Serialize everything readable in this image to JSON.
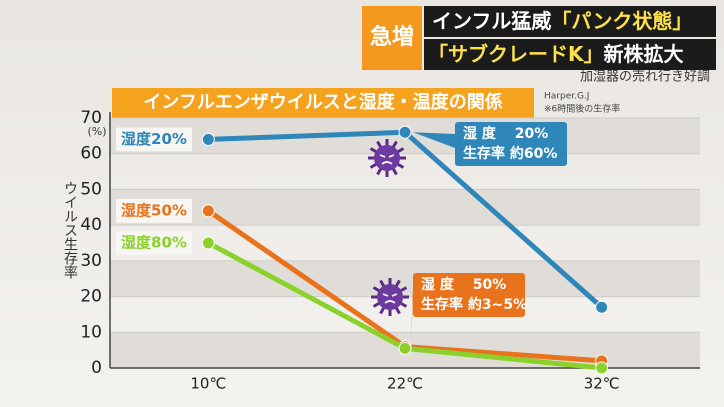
{
  "header": {
    "badge": "急増",
    "lines": [
      [
        {
          "text": "インフル猛威",
          "highlight": false
        },
        {
          "text": "「パンク状態」",
          "highlight": true
        }
      ],
      [
        {
          "text": "「サブクレードK」",
          "highlight": true
        },
        {
          "text": "新株拡大",
          "highlight": false
        }
      ]
    ],
    "subline": "加湿器の売れ行き好調"
  },
  "chart_data": {
    "type": "line",
    "title": "インフルエンザウイルスと湿度・温度の関係",
    "source": "Harper.G.J",
    "note": "※6時間後の生存率",
    "y_label": "ウイルス生存率",
    "y_unit": "(%)",
    "categories": [
      "10℃",
      "22℃",
      "32℃"
    ],
    "series": [
      {
        "name": "湿度20%",
        "color": "#2f86b9",
        "values": [
          64,
          66,
          17
        ]
      },
      {
        "name": "湿度50%",
        "color": "#e8731c",
        "values": [
          44,
          6,
          2
        ]
      },
      {
        "name": "湿度80%",
        "color": "#8bd12c",
        "values": [
          35,
          5.5,
          0
        ]
      }
    ],
    "ylim": [
      0,
      70
    ],
    "yticks": [
      0,
      10,
      20,
      30,
      40,
      50,
      60,
      70
    ],
    "annotations": [
      {
        "lines": [
          "湿 度　 20%",
          "生存率 約60%"
        ],
        "color": "#2f86b9"
      },
      {
        "lines": [
          "湿 度　 50%",
          "生存率 約3~5%"
        ],
        "color": "#e8731c"
      }
    ]
  }
}
